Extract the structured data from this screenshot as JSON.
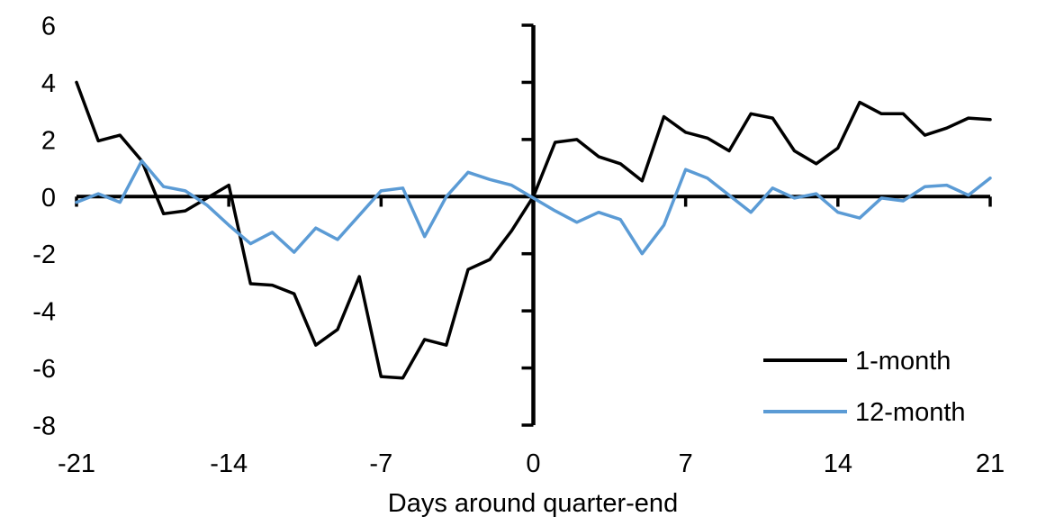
{
  "chart_data": {
    "type": "line",
    "title": "",
    "xlabel": "Days around quarter-end",
    "ylabel": "",
    "xlim": [
      -21,
      21
    ],
    "ylim": [
      -8,
      6
    ],
    "x_ticks": [
      -21,
      -14,
      -7,
      0,
      7,
      14,
      21
    ],
    "y_ticks": [
      6,
      4,
      2,
      0,
      -2,
      -4,
      -6,
      -8
    ],
    "grid": false,
    "legend_position": "inside-lower-right",
    "axis_color": "#000000",
    "x": [
      -21,
      -20,
      -19,
      -18,
      -17,
      -16,
      -15,
      -14,
      -13,
      -12,
      -11,
      -10,
      -9,
      -8,
      -7,
      -6,
      -5,
      -4,
      -3,
      -2,
      -1,
      0,
      1,
      2,
      3,
      4,
      5,
      6,
      7,
      8,
      9,
      10,
      11,
      12,
      13,
      14,
      15,
      16,
      17,
      18,
      19,
      20,
      21
    ],
    "series": [
      {
        "name": "1-month",
        "color": "#000000",
        "values": [
          4.0,
          1.95,
          2.15,
          1.25,
          -0.6,
          -0.5,
          -0.05,
          0.4,
          -3.05,
          -3.1,
          -3.4,
          -5.2,
          -4.65,
          -2.8,
          -6.3,
          -6.35,
          -5.0,
          -5.2,
          -2.55,
          -2.2,
          -1.2,
          0.0,
          1.9,
          2.0,
          1.4,
          1.15,
          0.55,
          2.8,
          2.25,
          2.05,
          1.6,
          2.9,
          2.75,
          1.6,
          1.15,
          1.7,
          3.3,
          2.9,
          2.9,
          2.15,
          2.4,
          2.75,
          2.7
        ]
      },
      {
        "name": "12-month",
        "color": "#5B9BD5",
        "values": [
          -0.2,
          0.1,
          -0.2,
          1.25,
          0.35,
          0.2,
          -0.3,
          -1.0,
          -1.65,
          -1.25,
          -1.95,
          -1.1,
          -1.5,
          -0.65,
          0.2,
          0.3,
          -1.4,
          0.0,
          0.85,
          0.6,
          0.4,
          -0.05,
          -0.5,
          -0.9,
          -0.55,
          -0.8,
          -2.0,
          -1.0,
          0.95,
          0.65,
          0.05,
          -0.55,
          0.3,
          -0.05,
          0.1,
          -0.55,
          -0.75,
          -0.05,
          -0.15,
          0.35,
          0.4,
          0.05,
          0.65
        ]
      }
    ]
  }
}
